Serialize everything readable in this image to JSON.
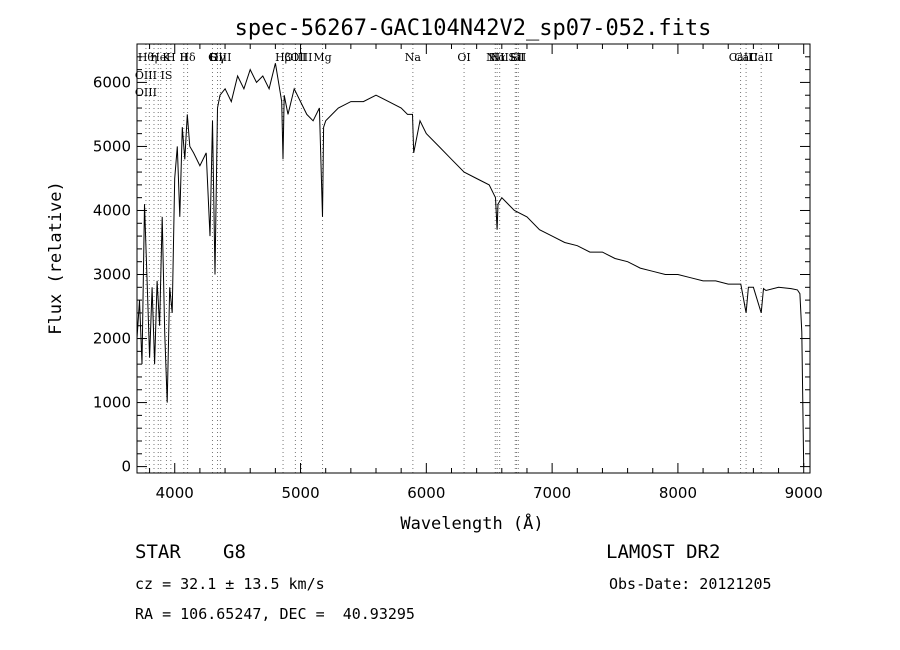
{
  "chart_data": {
    "type": "line",
    "title": "spec-56267-GAC104N42V2_sp07-052.fits",
    "xlabel": "Wavelength (Å)",
    "ylabel": "Flux (relative)",
    "xlim": [
      3700,
      9050
    ],
    "ylim": [
      -100,
      6600
    ],
    "xticks": [
      4000,
      5000,
      6000,
      7000,
      8000,
      9000
    ],
    "yticks": [
      0,
      1000,
      2000,
      3000,
      4000,
      5000,
      6000
    ],
    "grid": false,
    "line_color": "#000000",
    "series": [
      {
        "x": [
          3700,
          3720,
          3740,
          3760,
          3780,
          3800,
          3820,
          3840,
          3860,
          3880,
          3900,
          3920,
          3940,
          3960,
          3980,
          4000,
          4020,
          4040,
          4060,
          4080,
          4100,
          4120,
          4150,
          4200,
          4250,
          4280,
          4300,
          4320,
          4340,
          4360,
          4400,
          4450,
          4500,
          4550,
          4600,
          4650,
          4700,
          4750,
          4800,
          4850,
          4861,
          4870,
          4900,
          4950,
          5000,
          5050,
          5100,
          5150,
          5175,
          5183,
          5200,
          5250,
          5300,
          5400,
          5500,
          5600,
          5700,
          5800,
          5850,
          5890,
          5900,
          5950,
          6000,
          6100,
          6200,
          6300,
          6400,
          6500,
          6550,
          6563,
          6570,
          6600,
          6700,
          6800,
          6900,
          7000,
          7100,
          7200,
          7300,
          7400,
          7500,
          7600,
          7700,
          7800,
          7900,
          8000,
          8100,
          8200,
          8300,
          8400,
          8500,
          8542,
          8560,
          8600,
          8662,
          8680,
          8700,
          8800,
          8900,
          8950,
          8970,
          8985,
          9000
        ],
        "y": [
          2000,
          2600,
          1600,
          4100,
          2900,
          1700,
          2800,
          1600,
          2900,
          2200,
          3900,
          2100,
          1000,
          2800,
          2400,
          4500,
          5000,
          3900,
          5300,
          4800,
          5500,
          5000,
          4900,
          4700,
          4900,
          3600,
          5400,
          3000,
          5600,
          5800,
          5900,
          5700,
          6100,
          5900,
          6200,
          6000,
          6100,
          5900,
          6300,
          5700,
          4800,
          5800,
          5500,
          5900,
          5700,
          5500,
          5400,
          5600,
          3900,
          5300,
          5400,
          5500,
          5600,
          5700,
          5700,
          5800,
          5700,
          5600,
          5500,
          5500,
          4900,
          5400,
          5200,
          5000,
          4800,
          4600,
          4500,
          4400,
          4200,
          3700,
          4100,
          4200,
          4000,
          3900,
          3700,
          3600,
          3500,
          3450,
          3350,
          3350,
          3250,
          3200,
          3100,
          3050,
          3000,
          3000,
          2950,
          2900,
          2900,
          2850,
          2850,
          2400,
          2800,
          2800,
          2400,
          2780,
          2750,
          2800,
          2780,
          2760,
          2700,
          2100,
          0
        ]
      }
    ],
    "annotations": [
      {
        "x": 3771,
        "labels": [
          "Hθ",
          "OIII",
          "OIII"
        ]
      },
      {
        "x": 3798,
        "labels": [
          ""
        ]
      },
      {
        "x": 3835,
        "labels": [
          "η"
        ]
      },
      {
        "x": 3869,
        "labels": [
          "He"
        ]
      },
      {
        "x": 3889,
        "labels": [
          ""
        ]
      },
      {
        "x": 3934,
        "labels": [
          "K",
          "IS"
        ]
      },
      {
        "x": 3969,
        "labels": [
          "H"
        ]
      },
      {
        "x": 4072,
        "labels": [
          "II"
        ]
      },
      {
        "x": 4102,
        "labels": [
          "Hδ"
        ]
      },
      {
        "x": 4300,
        "labels": [
          "G"
        ]
      },
      {
        "x": 4340,
        "labels": [
          "Hγ"
        ]
      },
      {
        "x": 4363,
        "labels": [
          "OIII"
        ]
      },
      {
        "x": 4861,
        "labels": [
          "Hβ"
        ]
      },
      {
        "x": 4959,
        "labels": [
          "OIII"
        ]
      },
      {
        "x": 5007,
        "labels": [
          "OIII"
        ]
      },
      {
        "x": 5175,
        "labels": [
          "Mg"
        ]
      },
      {
        "x": 5893,
        "labels": [
          "Na"
        ]
      },
      {
        "x": 6300,
        "labels": [
          "OI"
        ]
      },
      {
        "x": 6548,
        "labels": [
          "NII"
        ]
      },
      {
        "x": 6563,
        "labels": [
          "Hα"
        ]
      },
      {
        "x": 6583,
        "labels": [
          "NII"
        ]
      },
      {
        "x": 6707,
        "labels": [
          "Li"
        ]
      },
      {
        "x": 6717,
        "labels": [
          "SII"
        ]
      },
      {
        "x": 6731,
        "labels": [
          "SII"
        ]
      },
      {
        "x": 8498,
        "labels": [
          "CaII"
        ]
      },
      {
        "x": 8542,
        "labels": [
          "CaII"
        ]
      },
      {
        "x": 8662,
        "labels": [
          "CaII"
        ]
      }
    ]
  },
  "info": {
    "object_type": "STAR",
    "subclass": "G8",
    "survey": "LAMOST DR2",
    "redshift": "cz = 32.1 ± 13.5 km/s",
    "obs_date": "Obs-Date: 20121205",
    "coords": "RA = 106.65247, DEC =  40.93295"
  }
}
